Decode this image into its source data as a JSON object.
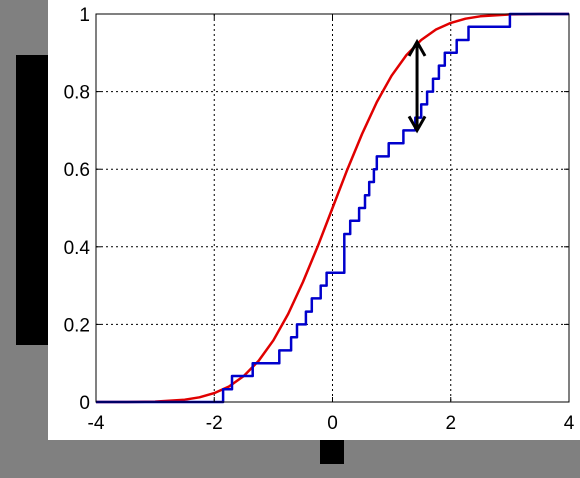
{
  "chart_data": {
    "type": "line",
    "title": "",
    "xlabel": "",
    "ylabel": "",
    "xlim": [
      -4,
      4
    ],
    "ylim": [
      0,
      1
    ],
    "xticks": [
      -4,
      -2,
      0,
      2,
      4
    ],
    "yticks": [
      0,
      0.2,
      0.4,
      0.6,
      0.8,
      1
    ],
    "xtick_labels": [
      "-4",
      "-2",
      "0",
      "2",
      "4"
    ],
    "ytick_labels": [
      "0",
      "0.2",
      "0.4",
      "0.6",
      "0.8",
      "1"
    ],
    "grid": true,
    "grid_style": "dotted",
    "legend": "none",
    "series": [
      {
        "kind": "theoretical-cdf",
        "color": "#e00000",
        "x": [
          -4,
          -3.5,
          -3,
          -2.5,
          -2.25,
          -2,
          -1.75,
          -1.5,
          -1.25,
          -1,
          -0.75,
          -0.5,
          -0.25,
          0,
          0.25,
          0.5,
          0.75,
          1,
          1.25,
          1.5,
          1.75,
          2,
          2.25,
          2.5,
          3,
          3.5,
          4
        ],
        "y": [
          0.0,
          0.0,
          0.001,
          0.006,
          0.012,
          0.023,
          0.04,
          0.067,
          0.106,
          0.159,
          0.227,
          0.309,
          0.401,
          0.5,
          0.599,
          0.691,
          0.773,
          0.841,
          0.894,
          0.933,
          0.96,
          0.977,
          0.988,
          0.994,
          0.999,
          1.0,
          1.0
        ]
      },
      {
        "kind": "empirical-cdf",
        "color": "#0000cc",
        "x": [
          -4,
          -1.85,
          -1.7,
          -1.35,
          -0.9,
          -0.7,
          -0.6,
          -0.45,
          -0.35,
          -0.2,
          -0.1,
          0.2,
          0.3,
          0.45,
          0.55,
          0.62,
          0.7,
          0.75,
          0.95,
          1.2,
          1.4,
          1.5,
          1.6,
          1.7,
          1.8,
          1.9,
          2.1,
          2.3,
          2.5,
          3.0,
          4
        ],
        "y": [
          0,
          0.033,
          0.067,
          0.1,
          0.133,
          0.167,
          0.2,
          0.233,
          0.267,
          0.3,
          0.333,
          0.433,
          0.467,
          0.5,
          0.533,
          0.567,
          0.6,
          0.633,
          0.667,
          0.7,
          0.733,
          0.767,
          0.8,
          0.833,
          0.867,
          0.9,
          0.933,
          0.967,
          0.967,
          1.0,
          1.0
        ]
      }
    ],
    "annotations": [
      {
        "type": "double-arrow",
        "color": "#000000",
        "x": 1.43,
        "y_from": 0.7,
        "y_to": 0.928
      }
    ]
  }
}
